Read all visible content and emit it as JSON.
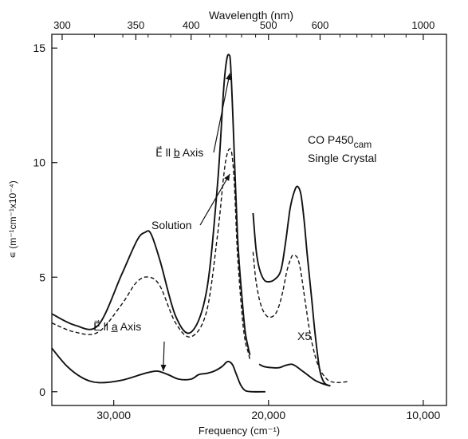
{
  "chart_data": {
    "type": "line",
    "title": "",
    "xlabel": "Frequency (cm⁻¹)",
    "x2label": "Wavelength (nm)",
    "ylabel": "∊ (m⁻¹cm⁻¹x10⁻⁴)",
    "xlim": [
      34000,
      8500
    ],
    "ylim": [
      -0.6,
      15.6
    ],
    "x_reversed": true,
    "grid": false,
    "legend": "none",
    "x_ticks": [
      30000,
      20000,
      10000
    ],
    "x_tick_labels": [
      "30,000",
      "20,000",
      "10,000"
    ],
    "y_ticks": [
      0,
      5,
      10,
      15
    ],
    "y_tick_labels": [
      "0",
      "5",
      "10",
      "15"
    ],
    "x2_ticks_nm": [
      300,
      350,
      400,
      500,
      600,
      1000
    ],
    "x2_tick_labels": [
      "300",
      "350",
      "400",
      "500",
      "600",
      "1000"
    ],
    "x2_minor_ticks_nm": [
      320,
      340,
      360,
      380,
      420,
      440,
      460,
      480,
      550,
      650,
      700,
      750,
      800,
      900
    ],
    "annotations": [
      {
        "text": "CO P450",
        "sub": "cam",
        "line2": "Single Crystal"
      },
      {
        "text": "E⃗ ll b̲ Axis",
        "arrow_to": [
          22500,
          13.9
        ]
      },
      {
        "text": "Solution",
        "arrow_to": [
          22500,
          9.5
        ]
      },
      {
        "text": "E⃗ ll a̲ Axis",
        "arrow_to": [
          26800,
          0.9
        ]
      },
      {
        "text": "X5"
      }
    ],
    "series": [
      {
        "style": "solid",
        "x": [
          34000,
          32500,
          31000,
          29500,
          28500,
          28000,
          27600,
          27000,
          26000,
          25000,
          24000,
          23300,
          22900,
          22700,
          22550,
          22450,
          22300,
          22000,
          21700,
          21500,
          21300,
          21200
        ],
        "y": [
          3.4,
          2.9,
          2.9,
          5.1,
          6.6,
          6.95,
          6.9,
          5.7,
          3.3,
          2.6,
          4.4,
          9.0,
          13.2,
          14.5,
          14.7,
          14.3,
          12.0,
          6.8,
          4.0,
          2.6,
          1.9,
          1.6
        ]
      },
      {
        "style": "dashed",
        "x": [
          34000,
          32500,
          31000,
          29500,
          28500,
          27700,
          27000,
          26000,
          25000,
          24000,
          23300,
          22900,
          22700,
          22500,
          22350,
          22200,
          22000,
          21700,
          21500,
          21300,
          21200
        ],
        "y": [
          3.0,
          2.6,
          2.6,
          3.8,
          4.8,
          5.0,
          4.6,
          3.0,
          2.4,
          3.5,
          6.8,
          9.4,
          10.3,
          10.6,
          10.3,
          9.0,
          6.0,
          3.3,
          2.2,
          1.7,
          1.4
        ]
      },
      {
        "style": "solid",
        "x": [
          34000,
          33000,
          32000,
          31000,
          29500,
          28000,
          27200,
          26500,
          25800,
          25000,
          24500,
          24000,
          23500,
          23000,
          22700,
          22500,
          22300,
          22100,
          21800,
          21500,
          21000,
          20200
        ],
        "y": [
          1.9,
          1.1,
          0.6,
          0.4,
          0.5,
          0.8,
          0.9,
          0.75,
          0.55,
          0.55,
          0.75,
          0.8,
          0.9,
          1.1,
          1.3,
          1.3,
          1.15,
          0.8,
          0.3,
          0.05,
          0.0,
          0.0
        ]
      },
      {
        "style": "solid",
        "x": [
          21000,
          20800,
          20600,
          20300,
          20000,
          19600,
          19200,
          18900,
          18600,
          18300,
          18100,
          17900,
          17700,
          17500,
          17200,
          17000,
          16700,
          16400,
          16000
        ],
        "y": [
          7.8,
          6.2,
          5.4,
          4.9,
          4.8,
          4.9,
          5.3,
          6.5,
          8.0,
          8.8,
          8.95,
          8.6,
          7.5,
          6.0,
          4.0,
          2.6,
          1.0,
          0.4,
          0.25
        ]
      },
      {
        "style": "dashed",
        "x": [
          21000,
          20800,
          20500,
          20100,
          19700,
          19400,
          19100,
          18800,
          18500,
          18300,
          18100,
          17900,
          17600,
          17300,
          17000,
          16700,
          16300,
          16000,
          15500,
          14800
        ],
        "y": [
          6.1,
          4.8,
          3.8,
          3.3,
          3.3,
          3.6,
          4.3,
          5.3,
          5.9,
          5.95,
          5.8,
          5.2,
          3.8,
          2.5,
          1.6,
          1.0,
          0.6,
          0.45,
          0.4,
          0.45
        ]
      },
      {
        "style": "solid",
        "x": [
          20600,
          20300,
          19800,
          19300,
          18900,
          18500,
          18200,
          17900,
          17500,
          17000,
          16500,
          16000
        ],
        "y": [
          1.2,
          1.1,
          1.05,
          1.05,
          1.15,
          1.2,
          1.1,
          0.95,
          0.75,
          0.5,
          0.35,
          0.25
        ]
      }
    ]
  }
}
